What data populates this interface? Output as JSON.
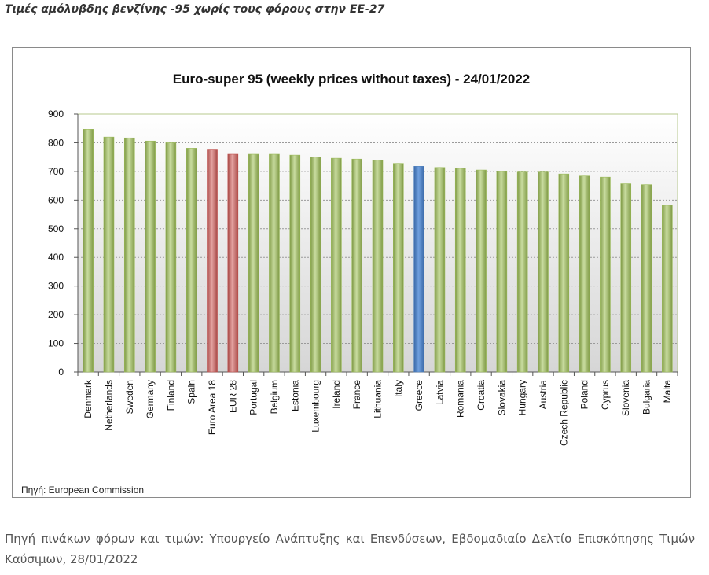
{
  "heading": "Τιμές αμόλυβδης βενζίνης -95 χωρίς τους φόρους στην ΕΕ-27",
  "footer_text": "Πηγή πινάκων φόρων και τιμών: Υπουργείο Ανάπτυξης και Επενδύσεων, Εβδομαδιαίο Δελτίο Επισκόπησης Τιμών Καύσιμων, 28/01/2022",
  "chart_data": {
    "type": "bar",
    "title": "Euro-super 95 (weekly prices without taxes) - 24/01/2022",
    "source_note": "Πηγή: European Commission",
    "xlabel": "",
    "ylabel": "",
    "ylim": [
      0,
      900
    ],
    "yticks": [
      0,
      100,
      200,
      300,
      400,
      500,
      600,
      700,
      800,
      900
    ],
    "grid": true,
    "legend": "none",
    "categories": [
      "Denmark",
      "Netherlands",
      "Sweden",
      "Germany",
      "Finland",
      "Spain",
      "Euro Area 18",
      "EUR 28",
      "Portugal",
      "Belgium",
      "Estonia",
      "Luxembourg",
      "Ireland",
      "France",
      "Lithuania",
      "Italy",
      "Greece",
      "Latvia",
      "Romania",
      "Croatia",
      "Slovakia",
      "Hungary",
      "Austria",
      "Czech Republic",
      "Poland",
      "Cyprus",
      "Slovenia",
      "Bulgaria",
      "Malta"
    ],
    "values": [
      847,
      820,
      817,
      806,
      800,
      781,
      775,
      760,
      760,
      760,
      757,
      750,
      746,
      743,
      740,
      728,
      718,
      714,
      711,
      705,
      700,
      698,
      698,
      691,
      684,
      680,
      657,
      654,
      582
    ],
    "bar_colors": {
      "default": "#9bbb59",
      "Euro Area 18": "#c0504d",
      "EUR 28": "#c0504d",
      "Greece": "#4f81bd"
    }
  }
}
